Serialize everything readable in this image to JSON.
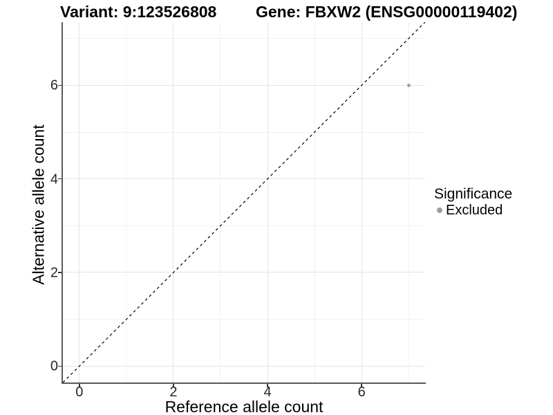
{
  "titles": {
    "variant": "Variant: 9:123526808",
    "gene": "Gene: FBXW2 (ENSG00000119402)"
  },
  "chart_data": {
    "type": "scatter",
    "title_left": "Variant: 9:123526808",
    "title_right": "Gene: FBXW2 (ENSG00000119402)",
    "xlabel": "Reference allele count",
    "ylabel": "Alternative allele count",
    "xlim": [
      -0.35,
      7.35
    ],
    "ylim": [
      -0.35,
      7.35
    ],
    "xticks": [
      0,
      2,
      4,
      6
    ],
    "yticks": [
      0,
      2,
      4,
      6
    ],
    "xminor": [
      1,
      3,
      5,
      7
    ],
    "yminor": [
      1,
      3,
      5,
      7
    ],
    "grid": "major and minor gridlines on white background",
    "series": [
      {
        "name": "Excluded",
        "color": "#a3a3a3",
        "points": [
          {
            "x": 7,
            "y": 6
          }
        ]
      }
    ],
    "reference_line": {
      "equation": "y = x",
      "style": "dashed",
      "color": "#000000"
    },
    "legend": {
      "title": "Significance",
      "position": "right",
      "entries": [
        {
          "label": "Excluded",
          "color": "#9e9e9e"
        }
      ]
    }
  },
  "colors": {
    "background": "#ffffff",
    "axis_line": "#595959",
    "grid_major": "#e4e4e4",
    "grid_minor": "#f1f1f1",
    "tick_mark": "#333333",
    "tick_text": "#262626",
    "point": "#a3a3a3",
    "title_text": "#000000"
  }
}
